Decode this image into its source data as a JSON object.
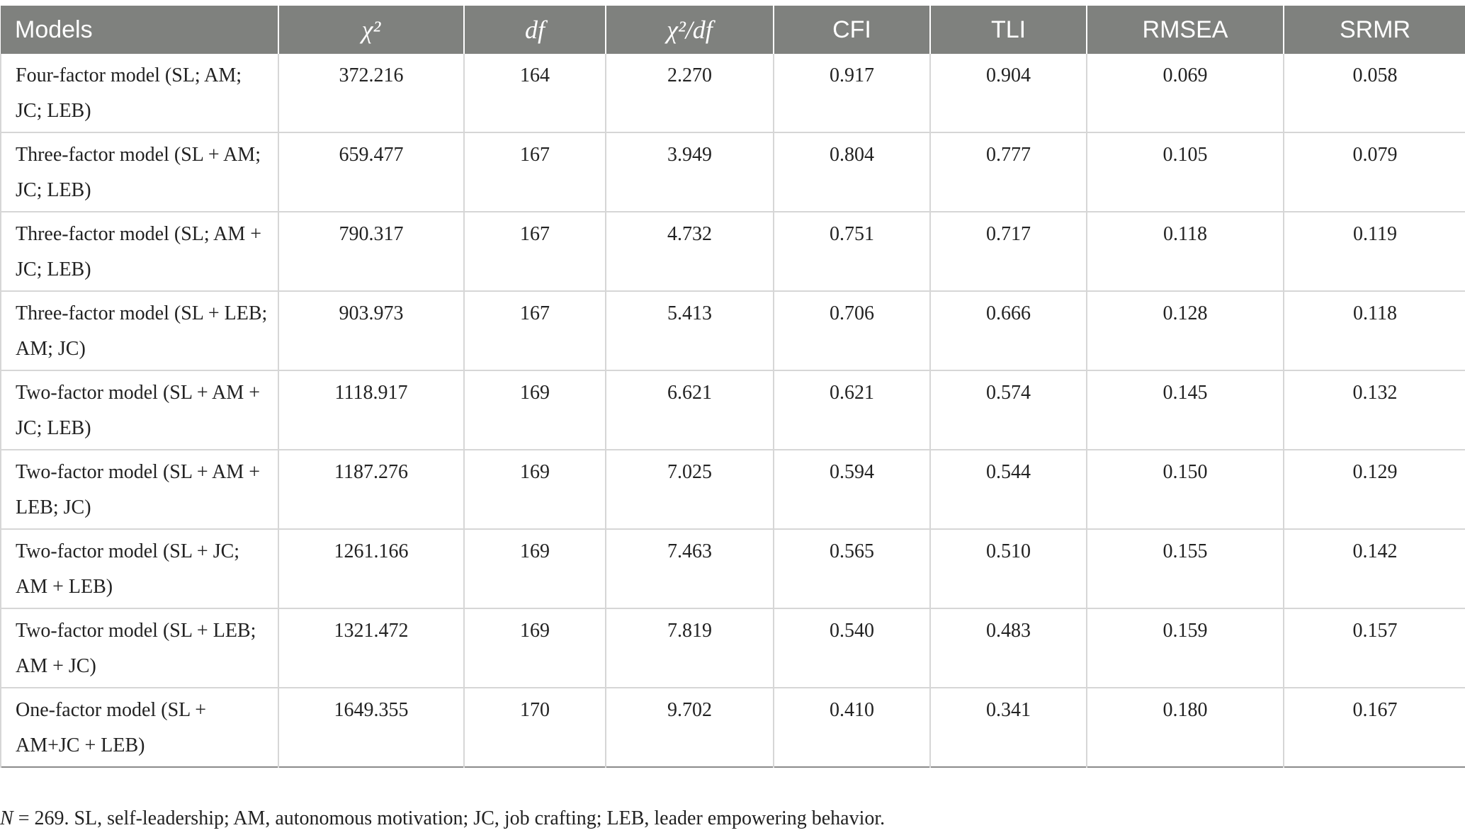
{
  "table": {
    "headers": [
      "Models",
      "χ²",
      "df",
      "χ²/df",
      "CFI",
      "TLI",
      "RMSEA",
      "SRMR"
    ],
    "rows": [
      [
        "Four-factor model (SL; AM; JC; LEB)",
        "372.216",
        "164",
        "2.270",
        "0.917",
        "0.904",
        "0.069",
        "0.058"
      ],
      [
        "Three-factor model (SL + AM; JC; LEB)",
        "659.477",
        "167",
        "3.949",
        "0.804",
        "0.777",
        "0.105",
        "0.079"
      ],
      [
        "Three-factor model (SL; AM + JC; LEB)",
        "790.317",
        "167",
        "4.732",
        "0.751",
        "0.717",
        "0.118",
        "0.119"
      ],
      [
        "Three-factor model (SL + LEB; AM; JC)",
        "903.973",
        "167",
        "5.413",
        "0.706",
        "0.666",
        "0.128",
        "0.118"
      ],
      [
        "Two-factor model (SL + AM + JC; LEB)",
        "1118.917",
        "169",
        "6.621",
        "0.621",
        "0.574",
        "0.145",
        "0.132"
      ],
      [
        "Two-factor model (SL + AM + LEB; JC)",
        "1187.276",
        "169",
        "7.025",
        "0.594",
        "0.544",
        "0.150",
        "0.129"
      ],
      [
        "Two-factor model (SL + JC; AM + LEB)",
        "1261.166",
        "169",
        "7.463",
        "0.565",
        "0.510",
        "0.155",
        "0.142"
      ],
      [
        "Two-factor model (SL + LEB; AM + JC)",
        "1321.472",
        "169",
        "7.819",
        "0.540",
        "0.483",
        "0.159",
        "0.157"
      ],
      [
        "One-factor model (SL + AM+JC + LEB)",
        "1649.355",
        "170",
        "9.702",
        "0.410",
        "0.341",
        "0.180",
        "0.167"
      ]
    ]
  },
  "note": {
    "n_label": "N",
    "text": " = 269. SL, self-leadership; AM, autonomous motivation; JC, job crafting; LEB, leader empowering behavior."
  }
}
